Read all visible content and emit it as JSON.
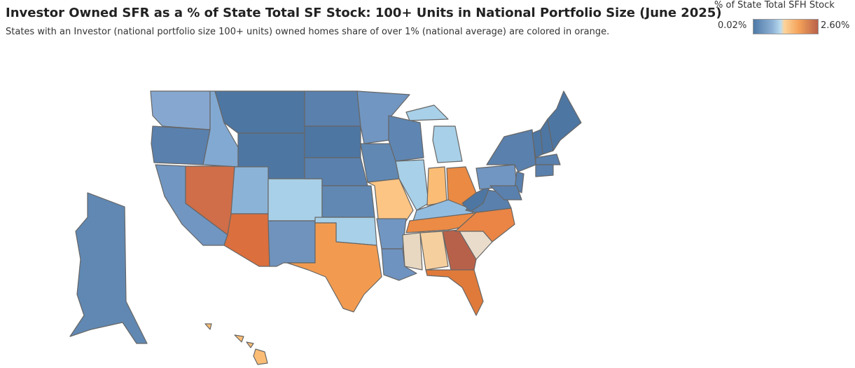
{
  "title": "Investor Owned SFR as a % of State Total SF Stock: 100+ Units in National Portfolio Size (June 2025)",
  "subtitle": "States with an Investor (national portfolio size 100+ units) owned homes share of over 1% (national average) are colored in orange.",
  "legend": {
    "title": "% of State Total SFH Stock",
    "min": "0.02%",
    "max": "2.60%",
    "color_min": "#4e79a7",
    "color_max": "#b8614a"
  },
  "states": [
    {
      "id": "WA",
      "color": "#86a8d0"
    },
    {
      "id": "OR",
      "color": "#5a80ad"
    },
    {
      "id": "CA",
      "color": "#7196c2"
    },
    {
      "id": "NV",
      "color": "#cf6e48"
    },
    {
      "id": "ID",
      "color": "#82a9d2"
    },
    {
      "id": "MT",
      "color": "#4e76a2"
    },
    {
      "id": "WY",
      "color": "#4e76a2"
    },
    {
      "id": "UT",
      "color": "#8bb3d8"
    },
    {
      "id": "AZ",
      "color": "#db6f3d"
    },
    {
      "id": "CO",
      "color": "#a8d0e8"
    },
    {
      "id": "NM",
      "color": "#6f93bd"
    },
    {
      "id": "ND",
      "color": "#5a80ad"
    },
    {
      "id": "SD",
      "color": "#4e76a2"
    },
    {
      "id": "NE",
      "color": "#5a80ad"
    },
    {
      "id": "KS",
      "color": "#6088b3"
    },
    {
      "id": "OK",
      "color": "#a8d0e8"
    },
    {
      "id": "TX",
      "color": "#f29b50"
    },
    {
      "id": "MN",
      "color": "#7196c2"
    },
    {
      "id": "IA",
      "color": "#6088b3"
    },
    {
      "id": "MO",
      "color": "#fdc583"
    },
    {
      "id": "AR",
      "color": "#7196c2"
    },
    {
      "id": "LA",
      "color": "#6f93c0"
    },
    {
      "id": "WI",
      "color": "#5f86b2"
    },
    {
      "id": "IL",
      "color": "#a8d0e8"
    },
    {
      "id": "MI",
      "color": "#a8d0e8"
    },
    {
      "id": "IN",
      "color": "#fbbd75"
    },
    {
      "id": "OH",
      "color": "#ea8a43"
    },
    {
      "id": "KY",
      "color": "#93bde0"
    },
    {
      "id": "TN",
      "color": "#ec8b45"
    },
    {
      "id": "MS",
      "color": "#e8d8c2"
    },
    {
      "id": "AL",
      "color": "#f6cf9e"
    },
    {
      "id": "GA",
      "color": "#b8614a"
    },
    {
      "id": "FL",
      "color": "#e07a3a"
    },
    {
      "id": "SC",
      "color": "#eadccb"
    },
    {
      "id": "NC",
      "color": "#ea8545"
    },
    {
      "id": "VA",
      "color": "#5a80ad"
    },
    {
      "id": "WV",
      "color": "#4e76a2"
    },
    {
      "id": "PA",
      "color": "#7196c2"
    },
    {
      "id": "NY",
      "color": "#5a80ad"
    },
    {
      "id": "NJ",
      "color": "#5a80ad"
    },
    {
      "id": "MD",
      "color": "#5a80ad"
    },
    {
      "id": "VT",
      "color": "#4e76a2"
    },
    {
      "id": "NH",
      "color": "#4e76a2"
    },
    {
      "id": "ME",
      "color": "#4e76a2"
    },
    {
      "id": "MA",
      "color": "#5a80ad"
    },
    {
      "id": "CT",
      "color": "#5a80ad"
    },
    {
      "id": "AK",
      "color": "#6088b3"
    },
    {
      "id": "HI",
      "color": "#fbbd75"
    }
  ]
}
